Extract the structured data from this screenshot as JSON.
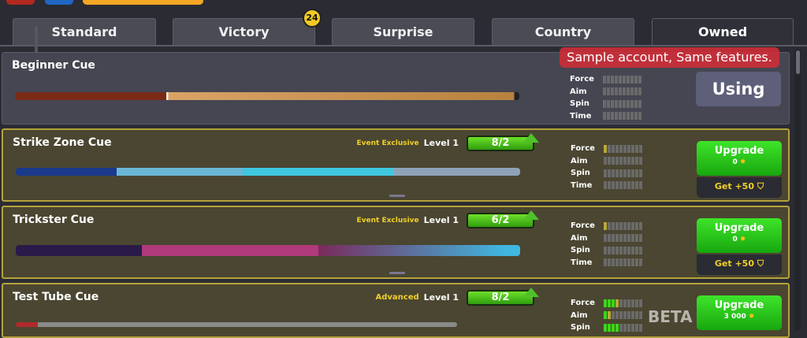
{
  "tabs": [
    {
      "label": "Standard"
    },
    {
      "label": "Victory",
      "badge": "24"
    },
    {
      "label": "Surprise"
    },
    {
      "label": "Country"
    },
    {
      "label": "Owned",
      "active": true
    }
  ],
  "toast": "Sample account, Same features.",
  "stat_labels": [
    "Force",
    "Aim",
    "Spin",
    "Time"
  ],
  "cues": [
    {
      "name": "Beginner Cue",
      "status": "Using",
      "stats": {
        "force": 0,
        "aim": 0,
        "spin": 0,
        "time": 0
      }
    },
    {
      "name": "Strike Zone Cue",
      "tag": "Event Exclusive",
      "level": "Level 1",
      "progress": "8/2",
      "upgrade": "Upgrade",
      "cost": "0",
      "get": "Get +50",
      "stats": {
        "force": 1,
        "aim": 0,
        "spin": 0,
        "time": 0
      }
    },
    {
      "name": "Trickster Cue",
      "tag": "Event Exclusive",
      "level": "Level 1",
      "progress": "6/2",
      "upgrade": "Upgrade",
      "cost": "0",
      "get": "Get +50",
      "stats": {
        "force": 1,
        "aim": 0,
        "spin": 0,
        "time": 0
      }
    },
    {
      "name": "Test Tube Cue",
      "tag": "Advanced",
      "level": "Level 1",
      "progress": "8/2",
      "upgrade": "Upgrade",
      "cost": "3 000",
      "stats": {
        "force": 4,
        "aim": 2,
        "spin": 4
      }
    }
  ],
  "watermark": "BETA",
  "colors": {
    "accent_green": "#2fc41a",
    "owned_border": "#b5a23a",
    "toast": "#cd2d37"
  }
}
